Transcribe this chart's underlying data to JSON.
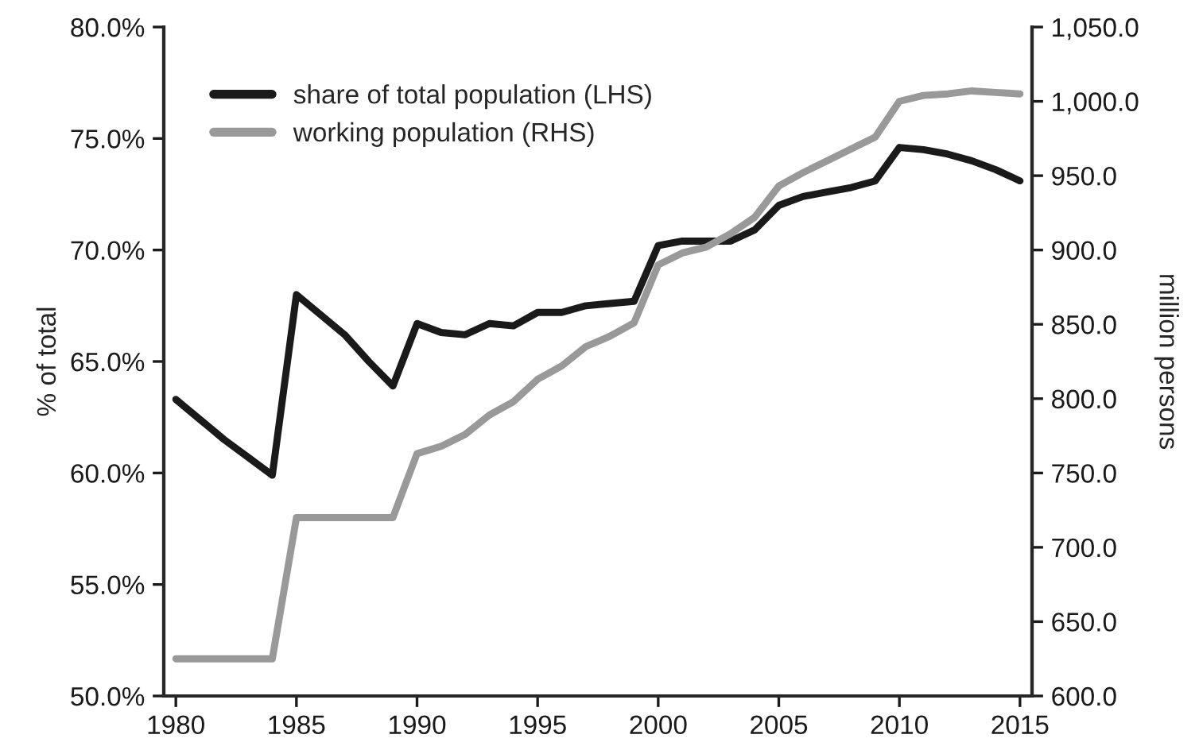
{
  "chart_data": {
    "type": "line",
    "ylabel": "% of total",
    "y2label": "million persons",
    "x": [
      1980,
      1981,
      1982,
      1983,
      1984,
      1985,
      1986,
      1987,
      1988,
      1989,
      1990,
      1991,
      1992,
      1993,
      1994,
      1995,
      1996,
      1997,
      1998,
      1999,
      2000,
      2001,
      2002,
      2003,
      2004,
      2005,
      2006,
      2007,
      2008,
      2009,
      2010,
      2011,
      2012,
      2013,
      2014,
      2015
    ],
    "series": [
      {
        "name": "share of total population (LHS)",
        "color": "#1a1a1a",
        "values": [
          63.3,
          62.4,
          61.5,
          60.7,
          59.9,
          68.0,
          67.1,
          66.2,
          65.0,
          63.9,
          66.7,
          66.3,
          66.2,
          66.7,
          66.6,
          67.2,
          67.2,
          67.5,
          67.6,
          67.7,
          70.2,
          70.4,
          70.4,
          70.4,
          70.9,
          72.0,
          72.4,
          72.6,
          72.8,
          73.1,
          74.6,
          74.5,
          74.3,
          74.0,
          73.6,
          73.1
        ]
      },
      {
        "name": "working population (RHS)",
        "color": "#999999",
        "axis": "y2",
        "values": [
          625,
          625,
          625,
          625,
          625,
          720,
          720,
          720,
          720,
          720,
          763,
          768,
          776,
          789,
          798,
          813,
          822,
          835,
          842,
          851,
          890,
          898,
          902,
          911,
          922,
          943,
          952,
          960,
          968,
          976,
          1000,
          1004,
          1005,
          1007,
          1006,
          1005
        ]
      }
    ],
    "xlim": [
      1979.5,
      2015.5
    ],
    "xticks": [
      1980,
      1985,
      1990,
      1995,
      2000,
      2005,
      2010,
      2015
    ],
    "ylim": [
      50,
      80
    ],
    "yticks": [
      {
        "value": 50,
        "label": "50.0%"
      },
      {
        "value": 55,
        "label": "55.0%"
      },
      {
        "value": 60,
        "label": "60.0%"
      },
      {
        "value": 65,
        "label": "65.0%"
      },
      {
        "value": 70,
        "label": "70.0%"
      },
      {
        "value": 75,
        "label": "75.0%"
      },
      {
        "value": 80,
        "label": "80.0%"
      }
    ],
    "y2lim": [
      600,
      1050
    ],
    "y2ticks": [
      {
        "value": 600,
        "label": "600.0"
      },
      {
        "value": 650,
        "label": "650.0"
      },
      {
        "value": 700,
        "label": "700.0"
      },
      {
        "value": 750,
        "label": "750.0"
      },
      {
        "value": 800,
        "label": "800.0"
      },
      {
        "value": 850,
        "label": "850.0"
      },
      {
        "value": 900,
        "label": "900.0"
      },
      {
        "value": 950,
        "label": "950.0"
      },
      {
        "value": 1000,
        "label": "1,000.0"
      },
      {
        "value": 1050,
        "label": "1,050.0"
      }
    ],
    "grid": false,
    "legend": "top left"
  }
}
